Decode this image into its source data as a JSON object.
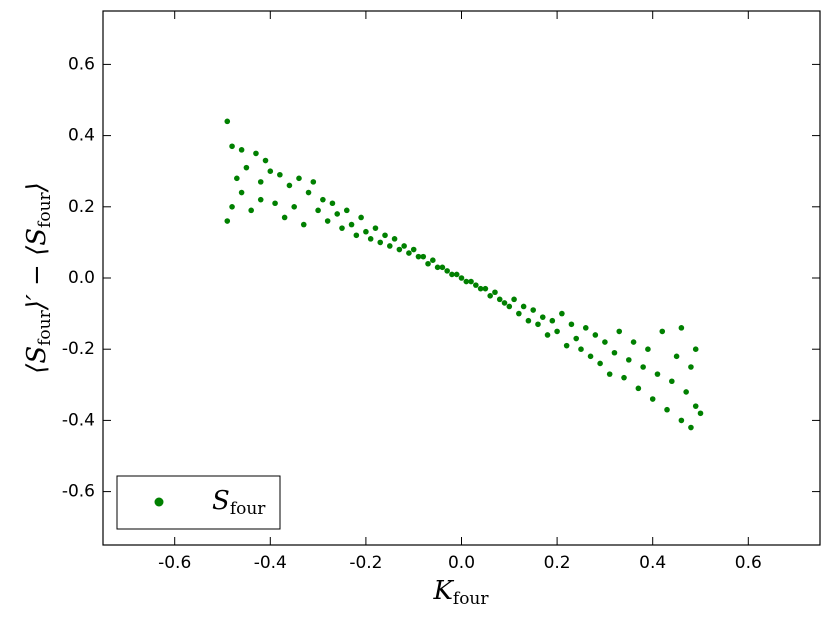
{
  "chart_data": {
    "type": "scatter",
    "xlabel_parts": [
      "K",
      "four"
    ],
    "ylabel_parts": [
      "⟨S",
      "four",
      "⟩′ − ⟨S",
      "four",
      "⟩"
    ],
    "xlim": [
      -0.75,
      0.75
    ],
    "ylim": [
      -0.75,
      0.75
    ],
    "xticks": [
      -0.6,
      -0.4,
      -0.2,
      {
        "value": 0,
        "label": "0.0"
      },
      0.2,
      0.4,
      0.6
    ],
    "yticks": [
      -0.6,
      -0.4,
      -0.2,
      {
        "value": 0,
        "label": "0.0"
      },
      0.2,
      0.4,
      0.6
    ],
    "grid": false,
    "legend": "lower left",
    "series": [
      {
        "name": "S",
        "name_sub": "four",
        "color": "#008000",
        "x": [
          -0.49,
          -0.49,
          -0.48,
          -0.48,
          -0.47,
          -0.46,
          -0.46,
          -0.45,
          -0.44,
          -0.43,
          -0.42,
          -0.42,
          -0.41,
          -0.4,
          -0.39,
          -0.38,
          -0.37,
          -0.36,
          -0.35,
          -0.34,
          -0.33,
          -0.32,
          -0.31,
          -0.3,
          -0.29,
          -0.28,
          -0.27,
          -0.26,
          -0.25,
          -0.24,
          -0.23,
          -0.22,
          -0.21,
          -0.2,
          -0.19,
          -0.18,
          -0.17,
          -0.16,
          -0.15,
          -0.14,
          -0.13,
          -0.12,
          -0.11,
          -0.1,
          -0.09,
          -0.08,
          -0.07,
          -0.06,
          -0.05,
          -0.04,
          -0.03,
          -0.02,
          -0.01,
          0.0,
          0.01,
          0.02,
          0.03,
          0.04,
          0.05,
          0.06,
          0.07,
          0.08,
          0.09,
          0.1,
          0.11,
          0.12,
          0.13,
          0.14,
          0.15,
          0.16,
          0.17,
          0.18,
          0.19,
          0.2,
          0.21,
          0.22,
          0.23,
          0.24,
          0.25,
          0.26,
          0.27,
          0.28,
          0.29,
          0.3,
          0.31,
          0.32,
          0.33,
          0.34,
          0.35,
          0.36,
          0.37,
          0.38,
          0.39,
          0.4,
          0.41,
          0.42,
          0.43,
          0.44,
          0.45,
          0.46,
          0.46,
          0.47,
          0.48,
          0.48,
          0.49,
          0.49,
          0.5
        ],
        "values": [
          0.44,
          0.16,
          0.37,
          0.2,
          0.28,
          0.36,
          0.24,
          0.31,
          0.19,
          0.35,
          0.27,
          0.22,
          0.33,
          0.3,
          0.21,
          0.29,
          0.17,
          0.26,
          0.2,
          0.28,
          0.15,
          0.24,
          0.27,
          0.19,
          0.22,
          0.16,
          0.21,
          0.18,
          0.14,
          0.19,
          0.15,
          0.12,
          0.17,
          0.13,
          0.11,
          0.14,
          0.1,
          0.12,
          0.09,
          0.11,
          0.08,
          0.09,
          0.07,
          0.08,
          0.06,
          0.06,
          0.04,
          0.05,
          0.03,
          0.03,
          0.02,
          0.01,
          0.01,
          0.0,
          -0.01,
          -0.01,
          -0.02,
          -0.03,
          -0.03,
          -0.05,
          -0.04,
          -0.06,
          -0.07,
          -0.08,
          -0.06,
          -0.1,
          -0.08,
          -0.12,
          -0.09,
          -0.13,
          -0.11,
          -0.16,
          -0.12,
          -0.15,
          -0.1,
          -0.19,
          -0.13,
          -0.17,
          -0.2,
          -0.14,
          -0.22,
          -0.16,
          -0.24,
          -0.18,
          -0.27,
          -0.21,
          -0.15,
          -0.28,
          -0.23,
          -0.18,
          -0.31,
          -0.25,
          -0.2,
          -0.34,
          -0.27,
          -0.15,
          -0.37,
          -0.29,
          -0.22,
          -0.4,
          -0.14,
          -0.32,
          -0.42,
          -0.25,
          -0.36,
          -0.2,
          -0.38
        ]
      }
    ]
  }
}
